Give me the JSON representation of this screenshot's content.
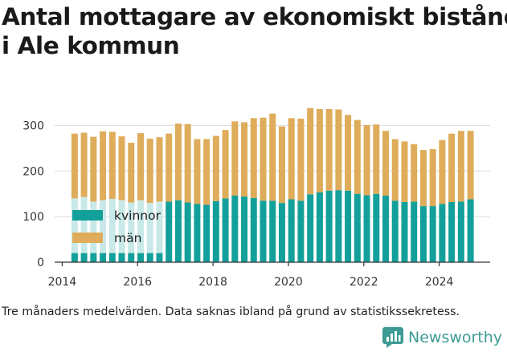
{
  "header": {
    "title_line1": "Antal mottagare av ekonomiskt bistånd",
    "title_line2": "i Ale kommun"
  },
  "caption": "Tre månaders medelvärden. Data saknas ibland på grund av statistikssekretess.",
  "brand": {
    "name": "Newsworthy",
    "icon": "newsworthy-logo-icon",
    "color": "#3d9a94"
  },
  "colors": {
    "kvinnor": "#14a09a",
    "kvinnor_missing": "#c8e9e8",
    "man": "#deac5a",
    "grid": "#e0e0e0",
    "axis": "#333333"
  },
  "chart_data": {
    "type": "bar",
    "stacked": true,
    "title": "Antal mottagare av ekonomiskt bistånd i Ale kommun",
    "xlabel": "",
    "ylabel": "",
    "ylim": [
      0,
      350
    ],
    "xlim": [
      2013.8,
      2025.35
    ],
    "y_ticks": [
      0,
      100,
      200,
      300
    ],
    "x_ticks": [
      2014,
      2016,
      2018,
      2020,
      2022,
      2024
    ],
    "grid": true,
    "legend_position": "left",
    "x": [
      2014.33,
      2014.58,
      2014.83,
      2015.08,
      2015.33,
      2015.58,
      2015.83,
      2016.08,
      2016.33,
      2016.58,
      2016.83,
      2017.08,
      2017.33,
      2017.58,
      2017.83,
      2018.08,
      2018.33,
      2018.58,
      2018.83,
      2019.08,
      2019.33,
      2019.58,
      2019.83,
      2020.08,
      2020.33,
      2020.58,
      2020.83,
      2021.08,
      2021.33,
      2021.58,
      2021.83,
      2022.08,
      2022.33,
      2022.58,
      2022.83,
      2023.08,
      2023.33,
      2023.58,
      2023.83,
      2024.08,
      2024.33,
      2024.58,
      2024.83
    ],
    "series": [
      {
        "name": "kvinnor",
        "values": [
          140,
          143,
          133,
          136,
          139,
          136,
          131,
          136,
          130,
          133,
          133,
          136,
          131,
          128,
          126,
          134,
          140,
          146,
          144,
          141,
          135,
          135,
          130,
          138,
          135,
          149,
          153,
          157,
          158,
          157,
          150,
          147,
          150,
          146,
          135,
          132,
          133,
          123,
          123,
          128,
          132,
          133,
          138
        ],
        "suppressed_partial": [
          20,
          20,
          20,
          20,
          20,
          20,
          20,
          20,
          20,
          20,
          null,
          null,
          null,
          null,
          null,
          null,
          null,
          null,
          null,
          null,
          null,
          null,
          null,
          null,
          null,
          null,
          null,
          null,
          null,
          null,
          null,
          null,
          null,
          null,
          null,
          null,
          null,
          null,
          null,
          null,
          null,
          null,
          null
        ]
      },
      {
        "name": "män",
        "values": [
          142,
          141,
          142,
          151,
          147,
          140,
          131,
          147,
          141,
          141,
          149,
          168,
          172,
          142,
          144,
          143,
          150,
          163,
          163,
          175,
          182,
          191,
          168,
          178,
          180,
          189,
          183,
          179,
          177,
          166,
          162,
          154,
          152,
          142,
          135,
          133,
          126,
          123,
          125,
          140,
          150,
          155,
          150
        ]
      }
    ]
  }
}
